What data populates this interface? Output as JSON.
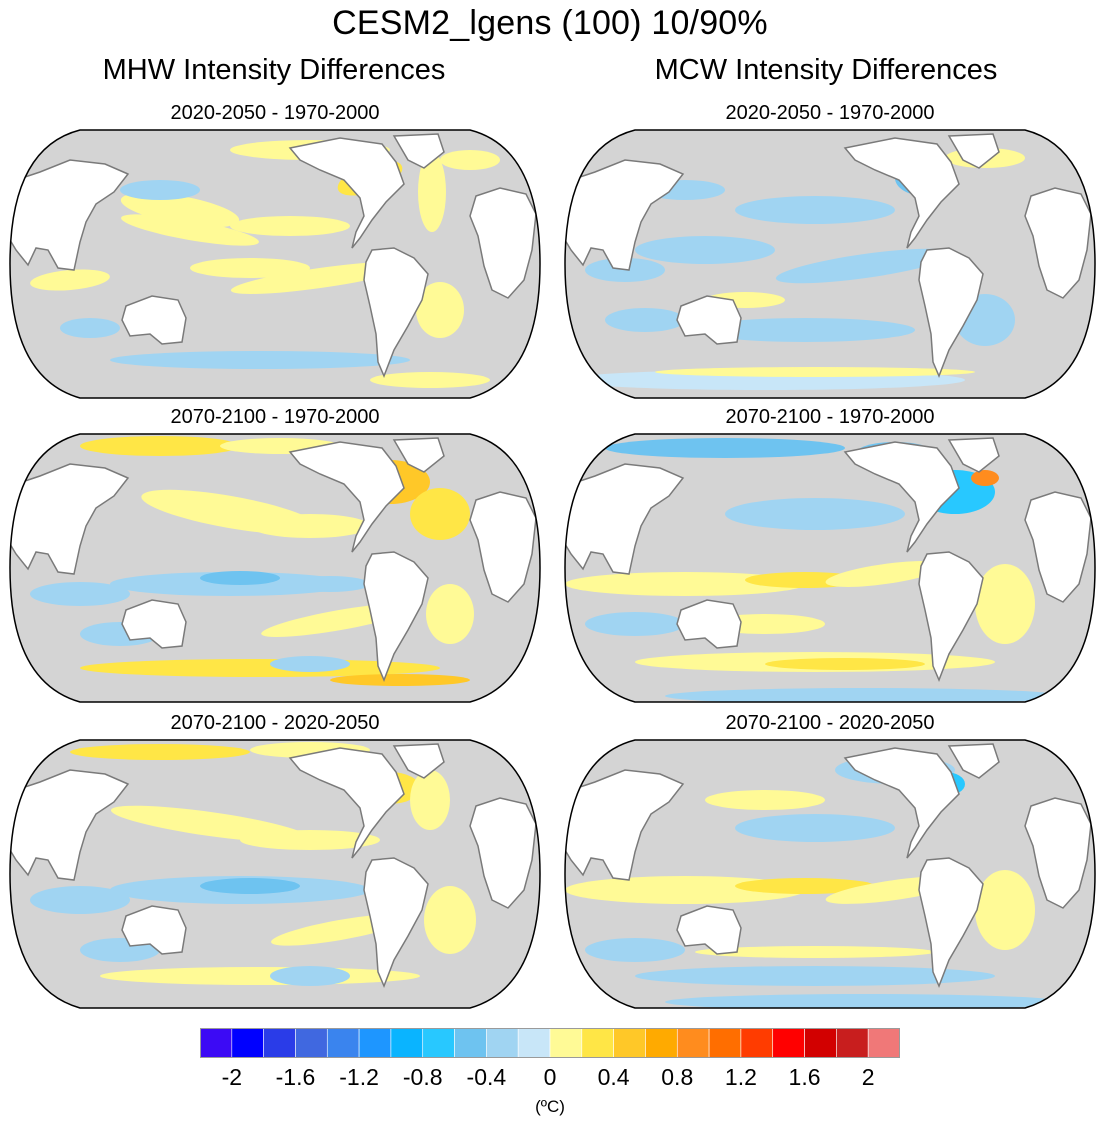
{
  "title": "CESM2_lgens (100) 10/90%",
  "columns": [
    {
      "title": "MHW Intensity Differences"
    },
    {
      "title": "MCW Intensity Differences"
    }
  ],
  "panels": [
    {
      "column": 0,
      "row": 0,
      "title": "2020-2050 - 1970-2000",
      "pattern": "mhw1"
    },
    {
      "column": 1,
      "row": 0,
      "title": "2020-2050 - 1970-2000",
      "pattern": "mcw1"
    },
    {
      "column": 0,
      "row": 1,
      "title": "2070-2100 - 1970-2000",
      "pattern": "mhw2"
    },
    {
      "column": 1,
      "row": 1,
      "title": "2070-2100 - 1970-2000",
      "pattern": "mcw2"
    },
    {
      "column": 0,
      "row": 2,
      "title": "2070-2100 - 2020-2050",
      "pattern": "mhw3"
    },
    {
      "column": 1,
      "row": 2,
      "title": "2070-2100 - 2020-2050",
      "pattern": "mcw3"
    }
  ],
  "colorbar": {
    "colors": [
      "#3c0af5",
      "#0000ff",
      "#2a3ce8",
      "#4068e0",
      "#3a84ee",
      "#1e96ff",
      "#0ab4ff",
      "#28c8ff",
      "#6ec3f0",
      "#a0d4f2",
      "#c8e6f8",
      "#fffa96",
      "#ffe646",
      "#ffc828",
      "#ffaa00",
      "#ff8c1e",
      "#ff6e00",
      "#ff3c00",
      "#ff0000",
      "#d20000",
      "#c81e1e",
      "#f07878"
    ],
    "labels": [
      "-2",
      "-1.6",
      "-1.2",
      "-0.8",
      "-0.4",
      "0",
      "0.4",
      "0.8",
      "1.2",
      "1.6",
      "2"
    ],
    "units": "(ºC)"
  },
  "palette": {
    "neutral": "#d4d4d4",
    "land": "#ffffff",
    "coast": "#7a7a7a"
  }
}
